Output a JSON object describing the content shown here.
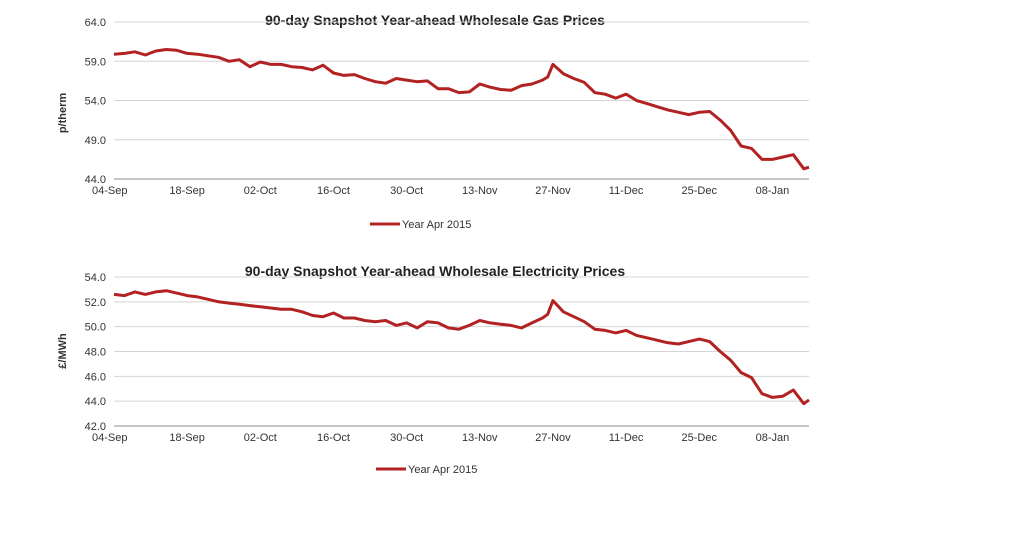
{
  "colors": {
    "series": "#b22222",
    "grid": "#d4d4d4",
    "axis": "#8c8c8c"
  },
  "chart_data": [
    {
      "type": "line",
      "title": "90-day Snapshot Year-ahead Wholesale Gas Prices",
      "xlabel": "",
      "ylabel": "p/therm",
      "ylim": [
        44.0,
        64.0
      ],
      "yticks": [
        "64.0",
        "59.0",
        "54.0",
        "49.0",
        "44.0"
      ],
      "ytick_values": [
        64,
        59,
        54,
        49,
        44
      ],
      "xticks": [
        "04-Sep",
        "18-Sep",
        "02-Oct",
        "16-Oct",
        "30-Oct",
        "13-Nov",
        "27-Nov",
        "11-Dec",
        "25-Dec",
        "08-Jan"
      ],
      "x_days": 133,
      "legend": "bottom",
      "grid": "horizontal",
      "series": [
        {
          "name": "Year Apr 2015",
          "x": [
            0,
            2,
            4,
            6,
            8,
            10,
            12,
            14,
            16,
            18,
            20,
            22,
            24,
            26,
            28,
            30,
            32,
            34,
            36,
            38,
            40,
            42,
            44,
            46,
            48,
            50,
            52,
            54,
            56,
            58,
            60,
            62,
            64,
            66,
            68,
            70,
            72,
            74,
            76,
            78,
            80,
            82,
            83,
            84,
            86,
            88,
            90,
            92,
            94,
            96,
            98,
            100,
            102,
            104,
            106,
            108,
            110,
            112,
            114,
            116,
            118,
            120,
            122,
            124,
            126,
            128,
            130,
            132,
            133
          ],
          "values": [
            59.9,
            60.0,
            60.2,
            59.8,
            60.3,
            60.5,
            60.4,
            60.0,
            59.9,
            59.7,
            59.5,
            59.0,
            59.2,
            58.3,
            58.9,
            58.6,
            58.6,
            58.3,
            58.2,
            57.9,
            58.5,
            57.5,
            57.2,
            57.3,
            56.8,
            56.4,
            56.2,
            56.8,
            56.6,
            56.4,
            56.5,
            55.5,
            55.5,
            55.0,
            55.1,
            56.1,
            55.7,
            55.4,
            55.3,
            55.9,
            56.1,
            56.6,
            57.0,
            58.6,
            57.4,
            56.8,
            56.3,
            55.0,
            54.8,
            54.3,
            54.8,
            54.0,
            53.6,
            53.2,
            52.8,
            52.5,
            52.2,
            52.5,
            52.6,
            51.5,
            50.2,
            48.2,
            47.9,
            46.5,
            46.5,
            46.8,
            47.1,
            45.3,
            45.5
          ]
        }
      ]
    },
    {
      "type": "line",
      "title": "90-day Snapshot Year-ahead Wholesale Electricity Prices",
      "xlabel": "",
      "ylabel": "£/MWh",
      "ylim": [
        42.0,
        54.0
      ],
      "yticks": [
        "54.0",
        "52.0",
        "50.0",
        "48.0",
        "46.0",
        "44.0",
        "42.0"
      ],
      "ytick_values": [
        54,
        52,
        50,
        48,
        46,
        44,
        42
      ],
      "xticks": [
        "04-Sep",
        "18-Sep",
        "02-Oct",
        "16-Oct",
        "30-Oct",
        "13-Nov",
        "27-Nov",
        "11-Dec",
        "25-Dec",
        "08-Jan"
      ],
      "x_days": 133,
      "legend": "bottom",
      "grid": "horizontal",
      "series": [
        {
          "name": "Year Apr 2015",
          "x": [
            0,
            2,
            4,
            6,
            8,
            10,
            12,
            14,
            16,
            18,
            20,
            22,
            24,
            26,
            28,
            30,
            32,
            34,
            36,
            38,
            40,
            42,
            44,
            46,
            48,
            50,
            52,
            54,
            56,
            58,
            60,
            62,
            64,
            66,
            68,
            70,
            72,
            74,
            76,
            78,
            80,
            82,
            83,
            84,
            86,
            88,
            90,
            92,
            94,
            96,
            98,
            100,
            102,
            104,
            106,
            108,
            110,
            112,
            114,
            116,
            118,
            120,
            122,
            124,
            126,
            128,
            130,
            132,
            133
          ],
          "values": [
            52.6,
            52.5,
            52.8,
            52.6,
            52.8,
            52.9,
            52.7,
            52.5,
            52.4,
            52.2,
            52.0,
            51.9,
            51.8,
            51.7,
            51.6,
            51.5,
            51.4,
            51.4,
            51.2,
            50.9,
            50.8,
            51.1,
            50.7,
            50.7,
            50.5,
            50.4,
            50.5,
            50.1,
            50.3,
            49.9,
            50.4,
            50.3,
            49.9,
            49.8,
            50.1,
            50.5,
            50.3,
            50.2,
            50.1,
            49.9,
            50.3,
            50.7,
            51.0,
            52.1,
            51.2,
            50.8,
            50.4,
            49.8,
            49.7,
            49.5,
            49.7,
            49.3,
            49.1,
            48.9,
            48.7,
            48.6,
            48.8,
            49.0,
            48.8,
            48.0,
            47.3,
            46.3,
            45.9,
            44.6,
            44.3,
            44.4,
            44.9,
            43.8,
            44.1
          ]
        }
      ]
    }
  ]
}
